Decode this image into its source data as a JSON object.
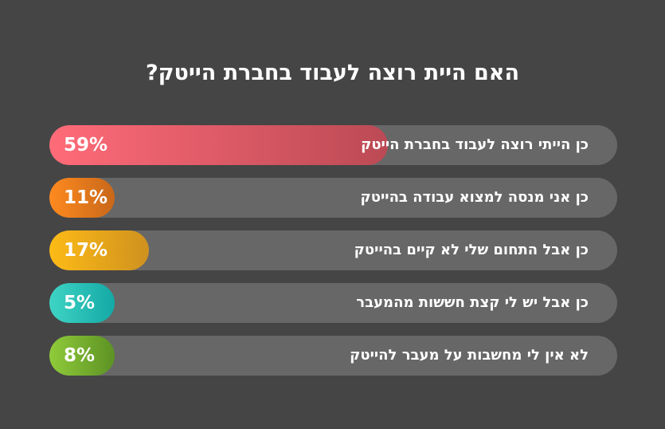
{
  "title": "האם היית רוצה לעבוד בחברת הייטק?",
  "chart_data": {
    "type": "bar",
    "title": "האם היית רוצה לעבוד בחברת הייטק?",
    "categories": [
      "כן הייתי רוצה לעבוד בחברת הייטק",
      "כן אני מנסה למצוא עבודה בהייטק",
      "כן אבל התחום שלי לא קיים בהייטק",
      "כן אבל יש לי קצת חששות מהמעבר",
      "לא אין לי מחשבות על מעבר להייטק"
    ],
    "values": [
      59,
      11,
      17,
      5,
      8
    ],
    "value_labels": [
      "59%",
      "11%",
      "17%",
      "5%",
      "8%"
    ],
    "orientation": "horizontal",
    "grid": false,
    "colors": [
      [
        "#ff6b78",
        "#bb4a55"
      ],
      [
        "#ff8a1f",
        "#c8681a"
      ],
      [
        "#fdbb16",
        "#cf911f"
      ],
      [
        "#3ed4c4",
        "#14a9a6"
      ],
      [
        "#8fcb3a",
        "#5d9224"
      ]
    ]
  }
}
